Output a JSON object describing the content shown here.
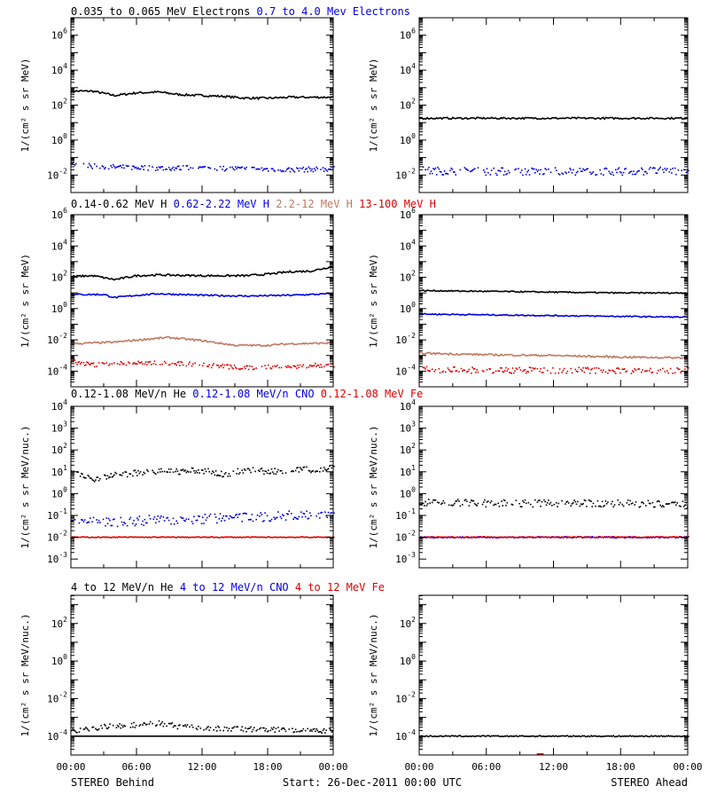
{
  "footer": {
    "left": "STEREO Behind",
    "center": "Start: 26-Dec-2011 00:00 UTC",
    "right": "STEREO Ahead"
  },
  "colors": {
    "black": "#000000",
    "blue": "#0000dd",
    "tan": "#c07860",
    "red": "#dd0000"
  },
  "x_tick_labels": [
    "00:00",
    "06:00",
    "12:00",
    "18:00",
    "00:00"
  ],
  "chart_data": [
    {
      "type": "scatter",
      "row": 1,
      "ylabel": "1/(cm² s sr MeV)",
      "y_scale": "log",
      "ylim_log10": [
        -3,
        7
      ],
      "y_tick_exponents": [
        -2,
        0,
        2,
        4,
        6
      ],
      "legend": [
        {
          "name": "0.035 to 0.065 MeV Electrons",
          "color": "#000000"
        },
        {
          "name": "0.7 to 4.0 Mev Electrons",
          "color": "#0000dd"
        }
      ],
      "behind": [
        {
          "color": "#000000",
          "style": "line",
          "x_hours": [
            0,
            2,
            4,
            6,
            8,
            10,
            12,
            14,
            16,
            18,
            20,
            22,
            24
          ],
          "log10": [
            2.8,
            2.8,
            2.55,
            2.7,
            2.75,
            2.6,
            2.55,
            2.5,
            2.4,
            2.4,
            2.45,
            2.45,
            2.45
          ],
          "noise": 0.06
        },
        {
          "color": "#0000dd",
          "style": "dots",
          "x_hours": [
            0,
            4,
            8,
            12,
            16,
            20,
            24
          ],
          "log10": [
            -1.45,
            -1.55,
            -1.6,
            -1.6,
            -1.65,
            -1.7,
            -1.65
          ],
          "noise": 0.14
        }
      ],
      "ahead": [
        {
          "color": "#000000",
          "style": "line",
          "x_hours": [
            0,
            6,
            12,
            18,
            24
          ],
          "log10": [
            1.25,
            1.25,
            1.25,
            1.25,
            1.25
          ],
          "noise": 0.05
        },
        {
          "color": "#0000dd",
          "style": "dots",
          "x_hours": [
            0,
            6,
            12,
            18,
            24
          ],
          "log10": [
            -1.75,
            -1.8,
            -1.8,
            -1.8,
            -1.75
          ],
          "noise": 0.22
        }
      ]
    },
    {
      "type": "scatter",
      "row": 2,
      "ylabel": "1/(cm² s sr MeV)",
      "y_scale": "log",
      "ylim_log10": [
        -5,
        6
      ],
      "y_tick_exponents": [
        -4,
        -2,
        0,
        2,
        4,
        6
      ],
      "legend": [
        {
          "name": "0.14-0.62 MeV H",
          "color": "#000000"
        },
        {
          "name": "0.62-2.22 MeV H",
          "color": "#0000dd"
        },
        {
          "name": "2.2-12 MeV H",
          "color": "#c07860"
        },
        {
          "name": "13-100 MeV H",
          "color": "#dd0000"
        }
      ],
      "behind": [
        {
          "color": "#000000",
          "style": "line",
          "x_hours": [
            0,
            2,
            4,
            6,
            8,
            12,
            16,
            18,
            20,
            22,
            24
          ],
          "log10": [
            2.05,
            2.1,
            1.85,
            2.1,
            2.15,
            2.1,
            2.1,
            2.2,
            2.35,
            2.4,
            2.7
          ],
          "noise": 0.06
        },
        {
          "color": "#0000dd",
          "style": "line",
          "x_hours": [
            0,
            3,
            4,
            6,
            8,
            12,
            16,
            20,
            24
          ],
          "log10": [
            0.9,
            0.9,
            0.7,
            0.85,
            0.95,
            0.85,
            0.8,
            0.85,
            0.95
          ],
          "noise": 0.05
        },
        {
          "color": "#c07860",
          "style": "line",
          "x_hours": [
            0,
            4,
            7,
            9,
            12,
            15,
            18,
            20,
            24
          ],
          "log10": [
            -2.25,
            -2.15,
            -1.95,
            -1.85,
            -2.05,
            -2.35,
            -2.35,
            -2.25,
            -2.2
          ],
          "noise": 0.06
        },
        {
          "color": "#dd0000",
          "style": "dots",
          "x_hours": [
            0,
            2,
            5,
            8,
            12,
            16,
            20,
            24
          ],
          "log10": [
            -3.4,
            -3.6,
            -3.5,
            -3.45,
            -3.6,
            -3.8,
            -3.7,
            -3.6
          ],
          "noise": 0.14
        }
      ],
      "ahead": [
        {
          "color": "#000000",
          "style": "line",
          "x_hours": [
            0,
            6,
            12,
            18,
            24
          ],
          "log10": [
            1.15,
            1.1,
            1.05,
            1.0,
            1.0
          ],
          "noise": 0.04
        },
        {
          "color": "#0000dd",
          "style": "line",
          "x_hours": [
            0,
            6,
            12,
            18,
            24
          ],
          "log10": [
            -0.35,
            -0.4,
            -0.45,
            -0.5,
            -0.55
          ],
          "noise": 0.04
        },
        {
          "color": "#c07860",
          "style": "line",
          "x_hours": [
            0,
            6,
            12,
            18,
            24
          ],
          "log10": [
            -2.85,
            -2.95,
            -3.0,
            -3.1,
            -3.15
          ],
          "noise": 0.06
        },
        {
          "color": "#dd0000",
          "style": "dots",
          "x_hours": [
            0,
            6,
            12,
            18,
            24
          ],
          "log10": [
            -3.9,
            -3.95,
            -3.95,
            -3.95,
            -3.95
          ],
          "noise": 0.2
        }
      ]
    },
    {
      "type": "scatter",
      "row": 3,
      "ylabel": "1/(cm² s sr MeV/nuc.)",
      "y_scale": "log",
      "ylim_log10": [
        -3.4,
        4
      ],
      "y_tick_exponents": [
        -3,
        -2,
        -1,
        0,
        1,
        2,
        3,
        4
      ],
      "legend": [
        {
          "name": "0.12-1.08 MeV/n He",
          "color": "#000000"
        },
        {
          "name": "0.12-1.08 MeV/n CNO",
          "color": "#0000dd"
        },
        {
          "name": "0.12-1.08 MeV Fe",
          "color": "#dd0000"
        }
      ],
      "behind": [
        {
          "color": "#000000",
          "style": "dots",
          "x_hours": [
            0,
            2,
            3,
            6,
            8,
            12,
            14,
            16,
            18,
            20,
            22,
            24
          ],
          "log10": [
            0.95,
            0.65,
            0.8,
            0.95,
            1.0,
            1.05,
            0.85,
            1.1,
            1.0,
            1.05,
            1.1,
            1.2
          ],
          "noise": 0.14
        },
        {
          "color": "#0000dd",
          "style": "dots",
          "x_hours": [
            0,
            4,
            8,
            12,
            16,
            20,
            24
          ],
          "log10": [
            -1.25,
            -1.3,
            -1.2,
            -1.15,
            -1.1,
            -1.0,
            -0.85
          ],
          "noise": 0.22
        },
        {
          "color": "#dd0000",
          "style": "dots",
          "x_hours": [
            0,
            24
          ],
          "log10": [
            -2.0,
            -2.0
          ],
          "noise": 0.02
        }
      ],
      "ahead": [
        {
          "color": "#000000",
          "style": "dots",
          "x_hours": [
            0,
            6,
            12,
            18,
            24
          ],
          "log10": [
            -0.4,
            -0.45,
            -0.45,
            -0.45,
            -0.5
          ],
          "noise": 0.16
        },
        {
          "color": "#0000dd",
          "style": "dots",
          "x_hours": [
            0,
            24
          ],
          "log10": [
            -2.0,
            -2.0
          ],
          "noise": 0.03
        },
        {
          "color": "#dd0000",
          "style": "dots",
          "x_hours": [
            0,
            24
          ],
          "log10": [
            -2.0,
            -2.0
          ],
          "noise": 0.02
        }
      ]
    },
    {
      "type": "scatter",
      "row": 4,
      "ylabel": "1/(cm² s sr MeV/nuc.)",
      "y_scale": "log",
      "ylim_log10": [
        -5,
        3.5
      ],
      "y_tick_exponents": [
        -4,
        -2,
        0,
        2
      ],
      "legend": [
        {
          "name": "4 to 12 MeV/n He",
          "color": "#000000"
        },
        {
          "name": "4 to 12 MeV/n CNO",
          "color": "#0000dd"
        },
        {
          "name": "4 to 12 MeV Fe",
          "color": "#dd0000"
        }
      ],
      "behind": [
        {
          "color": "#000000",
          "style": "line",
          "x_hours": [
            0,
            24
          ],
          "log10": [
            -4.0,
            -4.0
          ],
          "noise": 0.0
        },
        {
          "color": "#000000",
          "style": "dots",
          "x_hours": [
            0,
            4,
            6,
            8,
            10,
            14,
            18,
            24
          ],
          "log10": [
            -3.7,
            -3.45,
            -3.4,
            -3.3,
            -3.5,
            -3.6,
            -3.65,
            -3.7
          ],
          "noise": 0.14
        }
      ],
      "ahead": [
        {
          "color": "#000000",
          "style": "dots",
          "x_hours": [
            0,
            24
          ],
          "log10": [
            -4.0,
            -4.0
          ],
          "noise": 0.03
        },
        {
          "color": "#dd0000",
          "style": "dots",
          "x_hours": [
            10.5,
            11
          ],
          "log10": [
            -4.95,
            -4.95
          ],
          "noise": 0.0
        }
      ]
    }
  ]
}
